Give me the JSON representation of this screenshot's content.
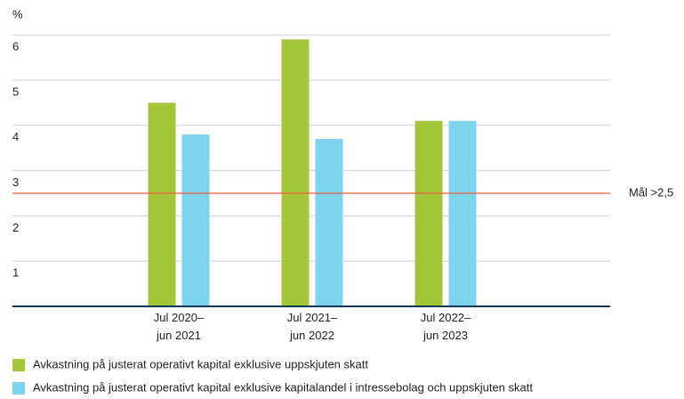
{
  "chart_data": {
    "type": "bar",
    "ylabel": "%",
    "categories": [
      [
        "Jul 2020–",
        "jun 2021"
      ],
      [
        "Jul 2021–",
        "jun 2022"
      ],
      [
        "Jul 2022–",
        "jun 2023"
      ]
    ],
    "series": [
      {
        "name": "Avkastning på justerat operativt kapital exklusive uppskjuten skatt",
        "color": "#a5c63b",
        "values": [
          4.5,
          5.9,
          4.1
        ]
      },
      {
        "name": "Avkastning på justerat operativt kapital exklusive kapitalandel i intressebolag och uppskjuten skatt",
        "color": "#7fd3ec",
        "values": [
          3.8,
          3.7,
          4.1
        ]
      }
    ],
    "target": {
      "value": 2.5,
      "label": "Mål >2,5",
      "color": "#e8603c"
    },
    "ylim": [
      0,
      6.5
    ],
    "yticks": [
      1,
      2,
      3,
      4,
      5,
      6
    ],
    "grid": true
  }
}
